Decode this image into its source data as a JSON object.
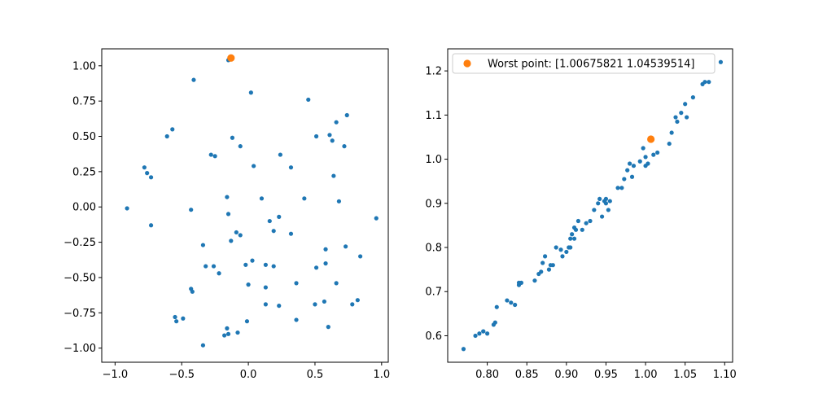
{
  "chart_data": [
    {
      "type": "scatter",
      "title": "",
      "xlabel": "",
      "ylabel": "",
      "xlim": [
        -1.1,
        1.05
      ],
      "ylim": [
        -1.1,
        1.12
      ],
      "xticks": [
        "−1.0",
        "−0.5",
        "0.0",
        "0.5",
        "1.0"
      ],
      "xtick_values": [
        -1.0,
        -0.5,
        0.0,
        0.5,
        1.0
      ],
      "yticks": [
        "−1.00",
        "−0.75",
        "−0.50",
        "−0.25",
        "0.00",
        "0.25",
        "0.50",
        "0.75",
        "1.00"
      ],
      "ytick_values": [
        -1.0,
        -0.75,
        -0.5,
        -0.25,
        0.0,
        0.25,
        0.5,
        0.75,
        1.0
      ],
      "grid": false,
      "series": [
        {
          "color": "#1f77b4",
          "x": [
            -0.15,
            0.02,
            -0.41,
            0.45,
            -0.57,
            -0.61,
            -0.12,
            0.74,
            0.66,
            0.61,
            0.63,
            0.51,
            0.72,
            -0.06,
            -0.78,
            -0.76,
            -0.73,
            -0.28,
            -0.25,
            0.04,
            0.24,
            0.32,
            0.64,
            -0.16,
            0.1,
            0.42,
            0.68,
            -0.91,
            -0.43,
            -0.15,
            0.23,
            0.16,
            0.19,
            -0.73,
            -0.09,
            -0.06,
            -0.13,
            0.32,
            -0.34,
            0.96,
            0.58,
            0.73,
            0.84,
            0.03,
            -0.32,
            -0.26,
            -0.02,
            0.13,
            0.19,
            0.51,
            0.58,
            -0.22,
            0.36,
            0.66,
            0.0,
            0.13,
            -0.43,
            -0.42,
            -0.55,
            -0.54,
            -0.49,
            0.5,
            0.57,
            0.78,
            0.82,
            0.23,
            0.36,
            0.6,
            -0.01,
            -0.08,
            -0.16,
            -0.15,
            -0.18,
            -0.34,
            0.13
          ],
          "y": [
            1.04,
            0.81,
            0.9,
            0.76,
            0.55,
            0.5,
            0.49,
            0.65,
            0.6,
            0.51,
            0.47,
            0.5,
            0.43,
            0.43,
            0.28,
            0.24,
            0.21,
            0.37,
            0.36,
            0.29,
            0.37,
            0.28,
            0.22,
            0.07,
            0.06,
            0.06,
            0.04,
            -0.01,
            -0.02,
            -0.05,
            -0.07,
            -0.1,
            -0.17,
            -0.13,
            -0.18,
            -0.2,
            -0.24,
            -0.19,
            -0.27,
            -0.08,
            -0.3,
            -0.28,
            -0.35,
            -0.38,
            -0.42,
            -0.42,
            -0.41,
            -0.41,
            -0.42,
            -0.43,
            -0.4,
            -0.47,
            -0.54,
            -0.54,
            -0.55,
            -0.57,
            -0.58,
            -0.6,
            -0.78,
            -0.81,
            -0.79,
            -0.69,
            -0.67,
            -0.69,
            -0.66,
            -0.7,
            -0.8,
            -0.85,
            -0.81,
            -0.89,
            -0.86,
            -0.9,
            -0.91,
            -0.98,
            -0.69
          ]
        },
        {
          "color": "#ff7f0e",
          "x": [
            -0.13
          ],
          "y": [
            1.055
          ]
        }
      ]
    },
    {
      "type": "scatter",
      "title": "",
      "xlabel": "",
      "ylabel": "",
      "xlim": [
        0.75,
        1.11
      ],
      "ylim": [
        0.54,
        1.25
      ],
      "xticks": [
        "0.80",
        "0.85",
        "0.90",
        "0.95",
        "1.00",
        "1.05",
        "1.10"
      ],
      "xtick_values": [
        0.8,
        0.85,
        0.9,
        0.95,
        1.0,
        1.05,
        1.1
      ],
      "yticks": [
        "0.6",
        "0.7",
        "0.8",
        "0.9",
        "1.0",
        "1.1",
        "1.2"
      ],
      "ytick_values": [
        0.6,
        0.7,
        0.8,
        0.9,
        1.0,
        1.1,
        1.2
      ],
      "grid": false,
      "legend": {
        "placement": "upper-left",
        "entries": [
          "Worst point: [1.00675821 1.04539514]"
        ]
      },
      "series": [
        {
          "color": "#1f77b4",
          "x": [
            0.77,
            0.785,
            0.79,
            0.795,
            0.8,
            0.808,
            0.81,
            0.812,
            0.825,
            0.83,
            0.835,
            0.84,
            0.843,
            0.86,
            0.865,
            0.868,
            0.87,
            0.873,
            0.878,
            0.883,
            0.887,
            0.893,
            0.895,
            0.9,
            0.903,
            0.905,
            0.907,
            0.91,
            0.91,
            0.912,
            0.92,
            0.925,
            0.93,
            0.935,
            0.94,
            0.942,
            0.945,
            0.948,
            0.95,
            0.953,
            0.955,
            0.965,
            0.97,
            0.973,
            0.977,
            0.98,
            0.983,
            0.985,
            0.993,
            0.997,
            1.0,
            1.003,
            1.01,
            1.015,
            1.03,
            1.033,
            1.038,
            1.04,
            1.045,
            1.05,
            1.052,
            1.06,
            1.072,
            1.075,
            1.08,
            1.095,
            0.905,
            0.915,
            0.795,
            0.84,
            0.88,
            0.95,
            1.0
          ],
          "y": [
            0.57,
            0.6,
            0.605,
            0.61,
            0.605,
            0.625,
            0.63,
            0.665,
            0.68,
            0.675,
            0.67,
            0.715,
            0.72,
            0.725,
            0.74,
            0.745,
            0.765,
            0.78,
            0.75,
            0.76,
            0.8,
            0.795,
            0.78,
            0.79,
            0.8,
            0.82,
            0.83,
            0.82,
            0.845,
            0.84,
            0.84,
            0.855,
            0.86,
            0.885,
            0.9,
            0.91,
            0.87,
            0.905,
            0.91,
            0.885,
            0.905,
            0.935,
            0.935,
            0.955,
            0.975,
            0.99,
            0.96,
            0.985,
            0.995,
            1.025,
            1.005,
            0.99,
            1.01,
            1.015,
            1.035,
            1.06,
            1.095,
            1.085,
            1.105,
            1.125,
            1.095,
            1.14,
            1.17,
            1.175,
            1.175,
            1.22,
            0.8,
            0.86,
            0.61,
            0.72,
            0.76,
            0.9,
            0.985
          ]
        },
        {
          "name": "Worst point: [1.00675821 1.04539514]",
          "color": "#ff7f0e",
          "x": [
            1.00675821
          ],
          "y": [
            1.04539514
          ]
        }
      ]
    }
  ]
}
